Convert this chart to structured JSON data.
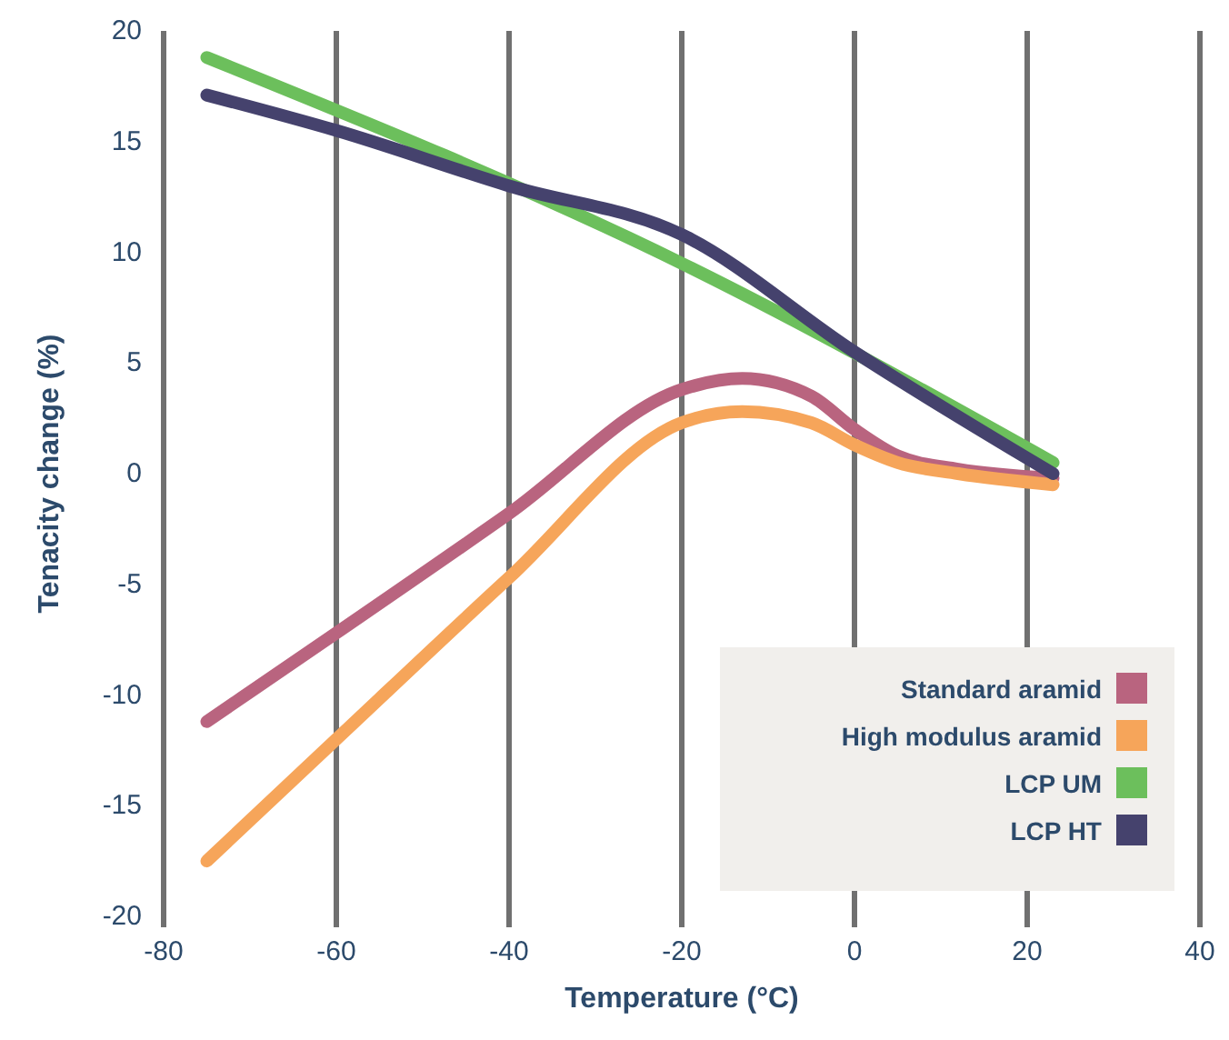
{
  "chart_data": {
    "type": "line",
    "xlabel": "Temperature (°C)",
    "ylabel": "Tenacity change (%)",
    "xlim": [
      -80,
      40
    ],
    "ylim": [
      -20,
      20
    ],
    "xticks": [
      -80,
      -60,
      -40,
      -20,
      0,
      20,
      40
    ],
    "yticks": [
      -20,
      -15,
      -10,
      -5,
      0,
      5,
      10,
      15,
      20
    ],
    "grid": "x",
    "legend": "bottom right",
    "series": [
      {
        "name": "Standard aramid",
        "color": "#b9647f",
        "x": [
          -75,
          -60,
          -40,
          -20,
          -13,
          -5,
          0,
          5,
          12,
          23
        ],
        "values": [
          -11.2,
          -7.2,
          -1.8,
          3.8,
          4.3,
          3.5,
          2,
          0.8,
          0.2,
          -0.2
        ]
      },
      {
        "name": "High modulus aramid",
        "color": "#f6a55a",
        "x": [
          -75,
          -60,
          -40,
          -20,
          -13,
          -5,
          0,
          5,
          12,
          23
        ],
        "values": [
          -17.5,
          -12,
          -4.7,
          2.3,
          2.8,
          2.3,
          1.3,
          0.5,
          0,
          -0.5
        ]
      },
      {
        "name": "LCP UM",
        "color": "#6cbf5c",
        "x": [
          -75,
          -20,
          23
        ],
        "values": [
          18.8,
          9.5,
          0.5
        ]
      },
      {
        "name": "LCP HT",
        "color": "#45426d",
        "x": [
          -75,
          -60,
          -40,
          -20,
          0,
          23
        ],
        "values": [
          17.1,
          15.5,
          13,
          10.8,
          5.5,
          0
        ]
      }
    ]
  }
}
